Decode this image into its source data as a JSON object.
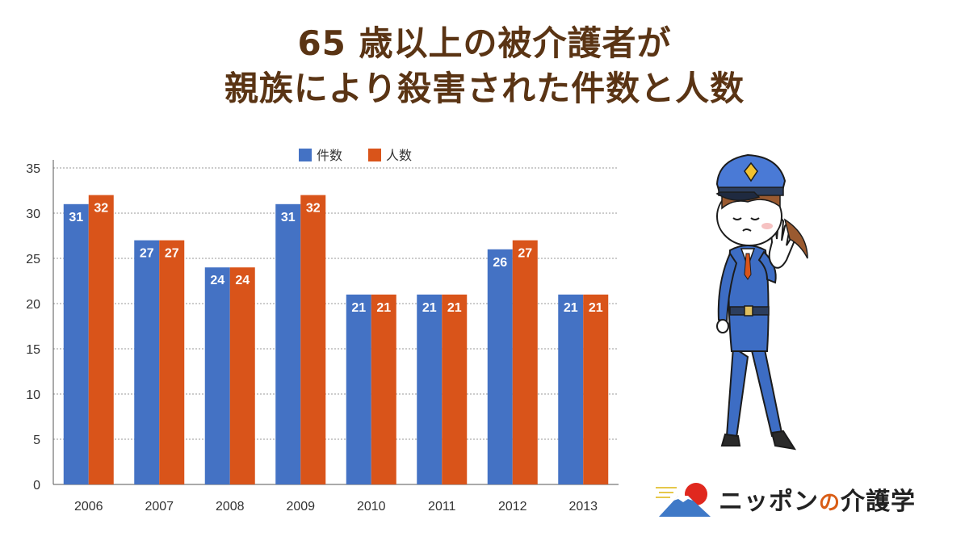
{
  "title": {
    "line1": "65 歳以上の被介護者が",
    "line2": "親族により殺害された件数と人数"
  },
  "chart_data": {
    "type": "bar",
    "categories": [
      "2006",
      "2007",
      "2008",
      "2009",
      "2010",
      "2011",
      "2012",
      "2013"
    ],
    "series": [
      {
        "name": "件数",
        "values": [
          31,
          27,
          24,
          31,
          21,
          21,
          26,
          21
        ],
        "color": "#4472c4"
      },
      {
        "name": "人数",
        "values": [
          32,
          27,
          24,
          32,
          21,
          21,
          27,
          21
        ],
        "color": "#d9541a"
      }
    ],
    "ylim": [
      0,
      35
    ],
    "yticks": [
      0,
      5,
      10,
      15,
      20,
      25,
      30,
      35
    ],
    "grid": true,
    "legend": "top-center",
    "title": "",
    "xlabel": "",
    "ylabel": ""
  },
  "logo": {
    "prefix": "ニッポン",
    "connector": "の",
    "suffix": "介護学"
  },
  "illustration": "police-officer-stop-gesture"
}
